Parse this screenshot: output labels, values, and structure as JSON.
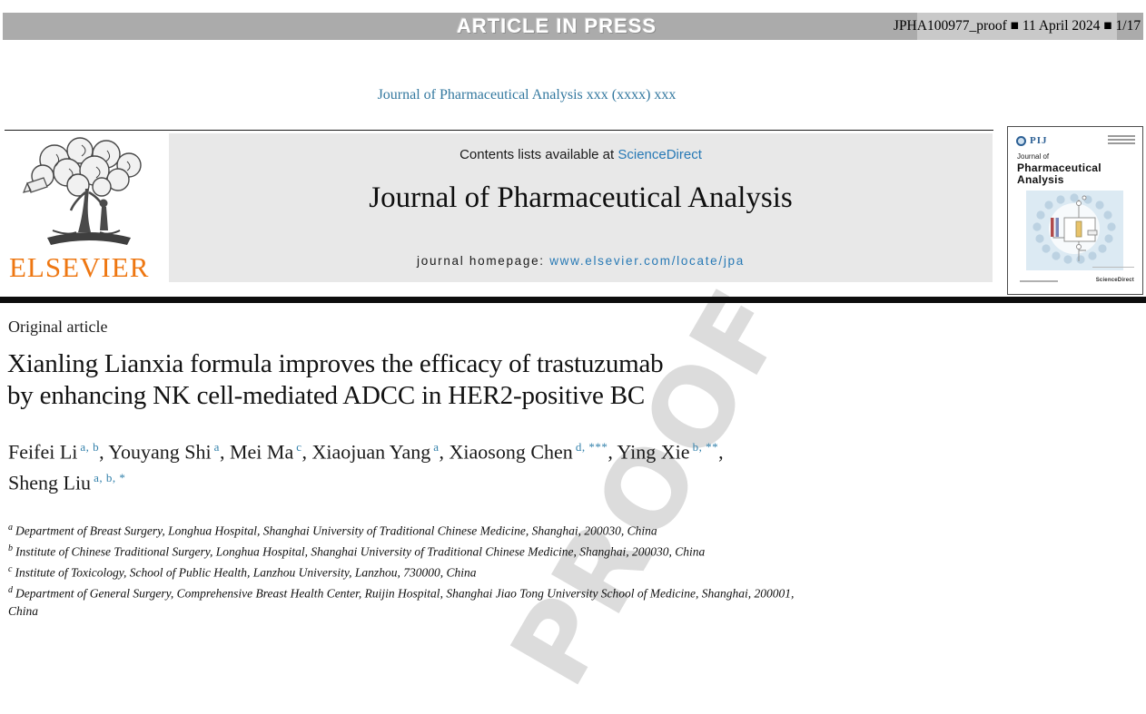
{
  "banner": {
    "article_in_press": "ARTICLE IN PRESS",
    "proof_info": "JPHA100977_proof ■ 11 April 2024 ■ 1/17"
  },
  "running_head": "Journal of Pharmaceutical Analysis xxx (xxxx) xxx",
  "header": {
    "contents_prefix": "Contents lists available at ",
    "sciencedirect_link": "ScienceDirect",
    "journal_title": "Journal of Pharmaceutical Analysis",
    "homepage_prefix": "journal homepage: ",
    "homepage_url": "www.elsevier.com/locate/jpa",
    "elsevier_wordmark": "ELSEVIER"
  },
  "cover": {
    "pij_logo": "PIJ",
    "title_line1": "Journal of",
    "title_line2": "Pharmaceutical",
    "title_line3": "Analysis",
    "footer_brand": "ScienceDirect"
  },
  "article": {
    "type_label": "Original article",
    "title_line1": "Xianling Lianxia formula improves the efficacy of trastuzumab",
    "title_line2": "by enhancing NK cell-mediated ADCC in HER2-positive BC",
    "authors": [
      {
        "name": "Feifei Li",
        "sup": "a, b",
        "sep": ", "
      },
      {
        "name": "Youyang Shi",
        "sup": "a",
        "sep": ", "
      },
      {
        "name": "Mei Ma",
        "sup": "c",
        "sep": ", "
      },
      {
        "name": "Xiaojuan Yang",
        "sup": "a",
        "sep": ", "
      },
      {
        "name": "Xiaosong Chen",
        "sup": "d, ***",
        "sep": ", "
      },
      {
        "name": "Ying Xie",
        "sup": "b, **",
        "sep": ","
      },
      {
        "name": "Sheng Liu",
        "sup": "a, b, *",
        "sep": "",
        "break_before": true
      }
    ],
    "affiliations": [
      {
        "sup": "a",
        "text": "Department of Breast Surgery, Longhua Hospital, Shanghai University of Traditional Chinese Medicine, Shanghai, 200030, China"
      },
      {
        "sup": "b",
        "text": "Institute of Chinese Traditional Surgery, Longhua Hospital, Shanghai University of Traditional Chinese Medicine, Shanghai, 200030, China"
      },
      {
        "sup": "c",
        "text": "Institute of Toxicology, School of Public Health, Lanzhou University, Lanzhou, 730000, China"
      },
      {
        "sup": "d",
        "text": "Department of General Surgery, Comprehensive Breast Health Center, Ruijin Hospital, Shanghai Jiao Tong University School of Medicine, Shanghai, 200001,",
        "text2": "China"
      }
    ]
  },
  "watermark": "PROOF",
  "icons": {
    "proof_separator": "■",
    "elsevier_logo": "elsevier-tree-logo",
    "pij_logo": "pij-circle-icon"
  },
  "colors": {
    "link_blue": "#2779b5",
    "running_head_teal": "#33789f",
    "superscript_blue": "#3381ab",
    "elsevier_orange": "#ee7712",
    "bar_gray": "#ababab",
    "proof_panel_gray": "#c9c9c9",
    "header_box_gray": "#e8e8e8",
    "watermark_gray": "#dcdcdc"
  }
}
